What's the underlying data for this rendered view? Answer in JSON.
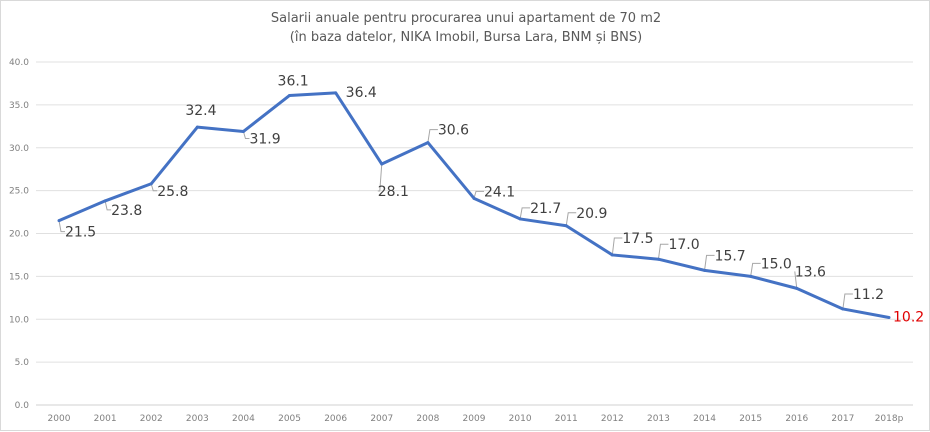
{
  "chart_data": {
    "type": "line",
    "title": "Salarii anuale pentru procurarea unui apartament de 70 m2",
    "subtitle": "(în baza datelor, NIKA Imobil, Bursa Lara, BNM și BNS)",
    "xlabel": "",
    "ylabel": "",
    "ylim": [
      0,
      40
    ],
    "yticks": [
      "0.0",
      "5.0",
      "10.0",
      "15.0",
      "20.0",
      "25.0",
      "30.0",
      "35.0",
      "40.0"
    ],
    "grid": true,
    "legend": "none",
    "categories": [
      "2000",
      "2001",
      "2002",
      "2003",
      "2004",
      "2005",
      "2006",
      "2007",
      "2008",
      "2009",
      "2010",
      "2011",
      "2012",
      "2013",
      "2014",
      "2015",
      "2016",
      "2017",
      "2018p"
    ],
    "series": [
      {
        "name": "Salarii anuale",
        "color": "#4472c4",
        "values": [
          21.5,
          23.8,
          25.8,
          32.4,
          31.9,
          36.1,
          36.4,
          28.1,
          30.6,
          24.1,
          21.7,
          20.9,
          17.5,
          17.0,
          15.7,
          15.0,
          13.6,
          11.2,
          10.2
        ],
        "labels": [
          "21.5",
          "23.8",
          "25.8",
          "32.4",
          "31.9",
          "36.1",
          "36.4",
          "28.1",
          "30.6",
          "24.1",
          "21.7",
          "20.9",
          "17.5",
          "17.0",
          "15.7",
          "15.0",
          "13.6",
          "11.2",
          "10.2"
        ]
      }
    ],
    "highlight_label_color": "#e00000",
    "highlight_index": 18,
    "label_color": "#404040",
    "axis_text_color": "#808080",
    "grid_color": "#e0e0e0"
  }
}
